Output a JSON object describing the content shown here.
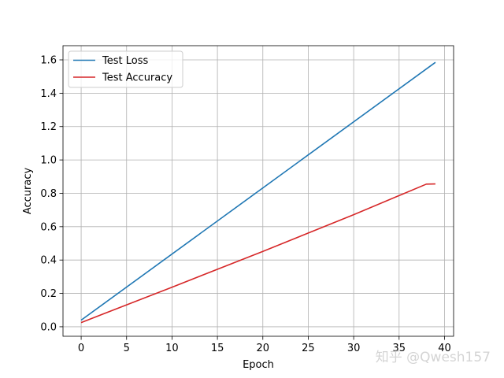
{
  "chart_data": {
    "type": "line",
    "title": "",
    "xlabel": "Epoch",
    "ylabel": "Accuracy",
    "xlim": [
      -2,
      41
    ],
    "ylim": [
      -0.057,
      1.685
    ],
    "xticks": [
      0,
      5,
      10,
      15,
      20,
      25,
      30,
      35,
      40
    ],
    "yticks": [
      0.0,
      0.2,
      0.4,
      0.6,
      0.8,
      1.0,
      1.2,
      1.4,
      1.6
    ],
    "ytick_labels": [
      "0.0",
      "0.2",
      "0.4",
      "0.6",
      "0.8",
      "1.0",
      "1.2",
      "1.4",
      "1.6"
    ],
    "grid": true,
    "legend_position": "top-left",
    "series": [
      {
        "name": "Test Loss",
        "color": "#1f77b4",
        "x": [
          0,
          39
        ],
        "y": [
          0.04,
          1.585
        ]
      },
      {
        "name": "Test Accuracy",
        "color": "#d62728",
        "x": [
          0,
          10,
          20,
          30,
          38,
          39
        ],
        "y": [
          0.025,
          0.237,
          0.452,
          0.672,
          0.855,
          0.856
        ]
      }
    ]
  },
  "watermark": {
    "text": "知乎 @Qwesh157"
  }
}
